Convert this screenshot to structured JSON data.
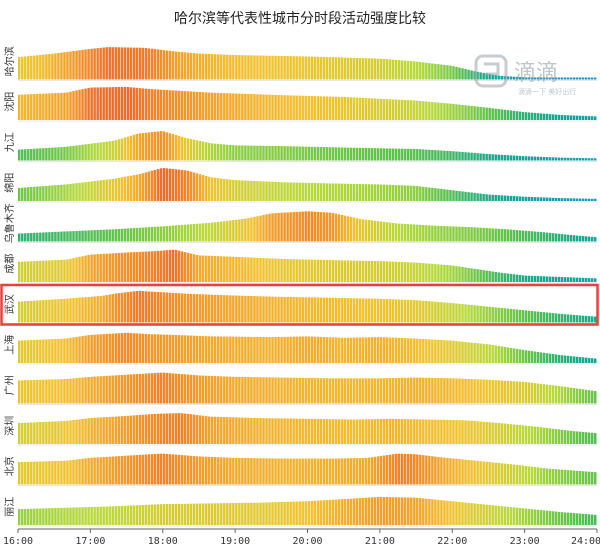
{
  "chart_data": {
    "type": "bar",
    "title": "哈尔滨等代表性城市分时段活动强度比较",
    "xlabel": "",
    "ylabel": "",
    "x_ticks": [
      "16:00",
      "17:00",
      "18:00",
      "19:00",
      "20:00",
      "21:00",
      "22:00",
      "23:00",
      "24:00"
    ],
    "x_range": [
      "16:00",
      "24:00"
    ],
    "highlighted_series": "武汉",
    "highlight_color": "#e8403a",
    "color_scale": [
      "#1b8fd6",
      "#1aa88c",
      "#5cc24a",
      "#b8d93a",
      "#f2c22e",
      "#f08c2a",
      "#e64a2e"
    ],
    "series": [
      {
        "name": "哈尔滨",
        "key_times": [
          "16:00",
          "16:30",
          "17:00",
          "17:15",
          "17:45",
          "18:10",
          "18:30",
          "19:00",
          "20:00",
          "21:00",
          "21:30",
          "22:00",
          "22:20",
          "22:40",
          "23:00",
          "24:00"
        ],
        "values": [
          0.62,
          0.72,
          0.85,
          0.9,
          0.88,
          0.78,
          0.72,
          0.68,
          0.64,
          0.58,
          0.5,
          0.38,
          0.22,
          0.1,
          0.06,
          0.04
        ]
      },
      {
        "name": "沈阳",
        "key_times": [
          "16:00",
          "16:40",
          "17:00",
          "17:30",
          "17:50",
          "18:10",
          "18:40",
          "19:30",
          "20:30",
          "21:30",
          "22:00",
          "22:30",
          "23:00",
          "23:30",
          "24:00"
        ],
        "values": [
          0.7,
          0.76,
          0.9,
          0.92,
          0.86,
          0.82,
          0.76,
          0.7,
          0.64,
          0.54,
          0.45,
          0.34,
          0.22,
          0.14,
          0.1
        ]
      },
      {
        "name": "九江",
        "key_times": [
          "16:00",
          "16:40",
          "17:20",
          "17:40",
          "18:00",
          "18:20",
          "18:40",
          "19:00",
          "19:40",
          "20:30",
          "21:00",
          "21:30",
          "22:00",
          "22:30",
          "23:00",
          "23:30",
          "24:00"
        ],
        "values": [
          0.3,
          0.38,
          0.55,
          0.75,
          0.82,
          0.62,
          0.48,
          0.42,
          0.4,
          0.36,
          0.34,
          0.32,
          0.26,
          0.18,
          0.12,
          0.08,
          0.06
        ]
      },
      {
        "name": "绵阳",
        "key_times": [
          "16:00",
          "16:40",
          "17:20",
          "17:40",
          "18:00",
          "18:20",
          "18:40",
          "19:00",
          "19:40",
          "20:30",
          "21:00",
          "21:30",
          "22:00",
          "22:30",
          "23:00",
          "23:30",
          "24:00"
        ],
        "values": [
          0.36,
          0.46,
          0.62,
          0.74,
          0.92,
          0.85,
          0.66,
          0.58,
          0.52,
          0.48,
          0.46,
          0.42,
          0.3,
          0.18,
          0.12,
          0.08,
          0.06
        ]
      },
      {
        "name": "乌鲁木齐",
        "key_times": [
          "16:00",
          "16:40",
          "17:20",
          "18:00",
          "18:40",
          "19:10",
          "19:30",
          "20:00",
          "20:20",
          "20:45",
          "21:15",
          "21:45",
          "22:15",
          "22:45",
          "23:15",
          "23:45",
          "24:00"
        ],
        "values": [
          0.22,
          0.28,
          0.34,
          0.42,
          0.52,
          0.64,
          0.78,
          0.84,
          0.8,
          0.62,
          0.5,
          0.44,
          0.4,
          0.34,
          0.26,
          0.16,
          0.12
        ]
      },
      {
        "name": "成都",
        "key_times": [
          "16:00",
          "16:40",
          "17:00",
          "17:30",
          "17:55",
          "18:10",
          "18:30",
          "19:00",
          "19:40",
          "20:30",
          "21:00",
          "21:30",
          "22:00",
          "22:20",
          "22:40",
          "23:00",
          "23:30",
          "24:00"
        ],
        "values": [
          0.56,
          0.62,
          0.76,
          0.82,
          0.86,
          0.9,
          0.74,
          0.7,
          0.64,
          0.6,
          0.58,
          0.54,
          0.46,
          0.36,
          0.26,
          0.18,
          0.14,
          0.1
        ]
      },
      {
        "name": "武汉",
        "key_times": [
          "16:00",
          "16:40",
          "17:10",
          "17:20",
          "17:40",
          "18:00",
          "18:20",
          "18:50",
          "19:30",
          "20:30",
          "21:00",
          "21:30",
          "22:00",
          "22:30",
          "23:00",
          "23:30",
          "24:00"
        ],
        "values": [
          0.58,
          0.66,
          0.74,
          0.8,
          0.88,
          0.84,
          0.8,
          0.76,
          0.72,
          0.68,
          0.66,
          0.62,
          0.54,
          0.44,
          0.34,
          0.24,
          0.16
        ]
      },
      {
        "name": "上海",
        "key_times": [
          "16:00",
          "16:40",
          "17:00",
          "17:30",
          "17:50",
          "18:10",
          "18:40",
          "19:30",
          "20:00",
          "20:30",
          "21:00",
          "21:30",
          "22:00",
          "22:30",
          "23:00",
          "23:30",
          "24:00"
        ],
        "values": [
          0.62,
          0.68,
          0.78,
          0.84,
          0.8,
          0.78,
          0.74,
          0.72,
          0.74,
          0.7,
          0.72,
          0.68,
          0.62,
          0.52,
          0.36,
          0.22,
          0.12
        ]
      },
      {
        "name": "广州",
        "key_times": [
          "16:00",
          "16:40",
          "17:00",
          "17:30",
          "18:00",
          "18:30",
          "19:00",
          "19:40",
          "20:20",
          "21:00",
          "21:30",
          "22:00",
          "22:30",
          "23:00",
          "23:30",
          "24:00"
        ],
        "values": [
          0.64,
          0.68,
          0.74,
          0.8,
          0.86,
          0.78,
          0.74,
          0.72,
          0.7,
          0.7,
          0.72,
          0.7,
          0.66,
          0.6,
          0.48,
          0.34
        ]
      },
      {
        "name": "深圳",
        "key_times": [
          "16:00",
          "16:40",
          "17:00",
          "17:30",
          "17:55",
          "18:15",
          "18:40",
          "19:20",
          "20:00",
          "20:40",
          "21:10",
          "21:40",
          "22:10",
          "22:40",
          "23:10",
          "23:40",
          "24:00"
        ],
        "values": [
          0.58,
          0.64,
          0.72,
          0.78,
          0.84,
          0.86,
          0.76,
          0.72,
          0.7,
          0.68,
          0.7,
          0.68,
          0.66,
          0.58,
          0.48,
          0.36,
          0.3
        ]
      },
      {
        "name": "北京",
        "key_times": [
          "16:00",
          "16:40",
          "17:00",
          "17:30",
          "18:00",
          "18:30",
          "19:00",
          "19:40",
          "20:20",
          "20:50",
          "21:15",
          "21:30",
          "21:50",
          "22:20",
          "22:50",
          "23:20",
          "24:00"
        ],
        "values": [
          0.62,
          0.66,
          0.74,
          0.8,
          0.86,
          0.78,
          0.74,
          0.72,
          0.72,
          0.74,
          0.86,
          0.84,
          0.76,
          0.66,
          0.56,
          0.44,
          0.34
        ]
      },
      {
        "name": "丽江",
        "key_times": [
          "16:00",
          "16:40",
          "17:20",
          "18:00",
          "18:40",
          "19:20",
          "20:00",
          "20:30",
          "21:00",
          "21:30",
          "22:00",
          "22:30",
          "23:00",
          "23:30",
          "24:00"
        ],
        "values": [
          0.44,
          0.48,
          0.52,
          0.58,
          0.6,
          0.62,
          0.66,
          0.72,
          0.78,
          0.76,
          0.66,
          0.56,
          0.46,
          0.36,
          0.28
        ]
      }
    ]
  },
  "watermark": {
    "brand": "滴滴",
    "tagline": "滴滴一下 美好出行"
  }
}
